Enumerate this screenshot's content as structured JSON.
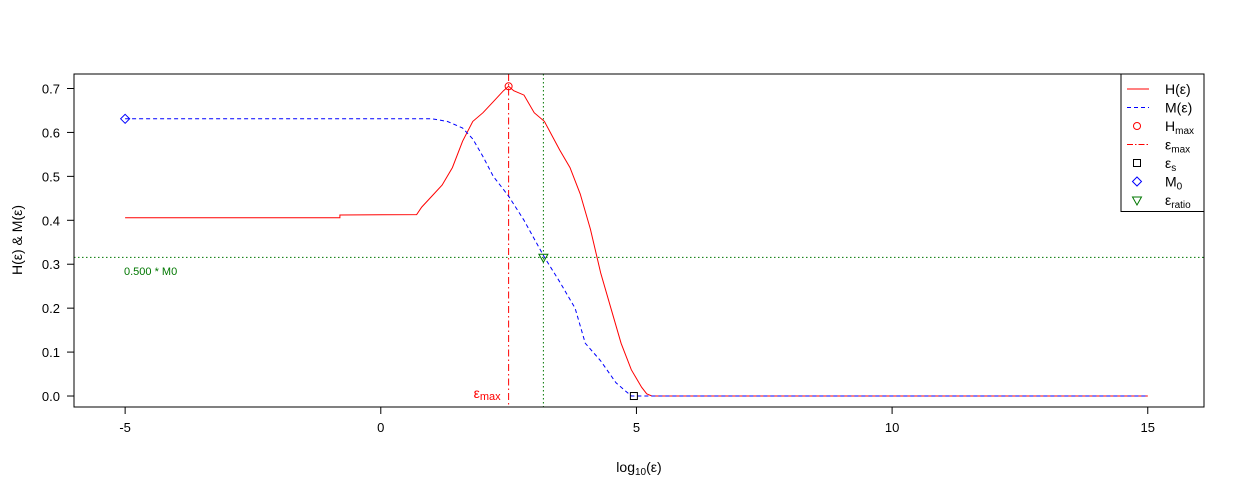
{
  "chart_data": {
    "type": "line",
    "xlabel_main": "log",
    "xlabel_sub": "10",
    "xlabel_tail": "(ε)",
    "ylabel": "H(ε)  & M(ε)",
    "xlim": [
      -6.0,
      16.1
    ],
    "ylim": [
      -0.025,
      0.733
    ],
    "x_ticks": [
      -5,
      0,
      5,
      10,
      15
    ],
    "y_ticks": [
      0.0,
      0.1,
      0.2,
      0.3,
      0.4,
      0.5,
      0.6,
      0.7
    ],
    "x_tick_labels": [
      "-5",
      "0",
      "5",
      "10",
      "15"
    ],
    "y_tick_labels": [
      "0.0",
      "0.1",
      "0.2",
      "0.3",
      "0.4",
      "0.5",
      "0.6",
      "0.7"
    ],
    "grid": false,
    "legend_position": "top-right",
    "colors": {
      "H": "#ff0000",
      "M": "#0000ff",
      "ratio": "#007700",
      "es": "#000000"
    },
    "series": [
      {
        "name": "H(ε)",
        "style": "solid",
        "x": [
          -5,
          -0.8,
          -0.8,
          0.7,
          0.8,
          1.0,
          1.2,
          1.4,
          1.6,
          1.8,
          2.0,
          2.2,
          2.4,
          2.5,
          2.6,
          2.8,
          3.0,
          3.2,
          3.5,
          3.7,
          3.9,
          4.1,
          4.3,
          4.5,
          4.7,
          4.9,
          5.0,
          5.1,
          5.2,
          5.3,
          15
        ],
        "y": [
          0.406,
          0.406,
          0.412,
          0.413,
          0.43,
          0.455,
          0.48,
          0.52,
          0.58,
          0.625,
          0.645,
          0.67,
          0.695,
          0.705,
          0.695,
          0.685,
          0.645,
          0.625,
          0.56,
          0.52,
          0.46,
          0.38,
          0.28,
          0.2,
          0.12,
          0.06,
          0.04,
          0.02,
          0.005,
          0.0,
          0.0
        ]
      },
      {
        "name": "M(ε)",
        "style": "dashed",
        "x": [
          -5,
          1.0,
          1.3,
          1.6,
          1.8,
          2.0,
          2.2,
          2.5,
          2.8,
          3.2,
          3.5,
          3.8,
          4.0,
          4.3,
          4.6,
          4.9,
          5.2,
          15
        ],
        "y": [
          0.631,
          0.631,
          0.625,
          0.61,
          0.585,
          0.545,
          0.5,
          0.455,
          0.4,
          0.316,
          0.26,
          0.2,
          0.12,
          0.08,
          0.03,
          0.0,
          0.0,
          0.0
        ]
      }
    ],
    "markers": {
      "Hmax": {
        "x": 2.5,
        "y": 0.705
      },
      "eps_max": {
        "x": 2.5
      },
      "eps_s": {
        "x": 4.95,
        "y": 0.0
      },
      "M0": {
        "x": -5,
        "y": 0.631
      },
      "eps_ratio": {
        "x": 3.18,
        "y": 0.316
      },
      "ratio_hline_y": 0.3155
    },
    "annotations": {
      "ratio_label": "0.500 * M0",
      "eps_max_main": "ε",
      "eps_max_sub": "max"
    },
    "legend": [
      {
        "symbol": "line-solid",
        "color": "#ff0000",
        "main": "H(ε)",
        "sub": ""
      },
      {
        "symbol": "line-dashed",
        "color": "#0000ff",
        "main": "M(ε)",
        "sub": ""
      },
      {
        "symbol": "circle",
        "color": "#ff0000",
        "main": "H",
        "sub": "max"
      },
      {
        "symbol": "line-dotdash",
        "color": "#ff0000",
        "main": "ε",
        "sub": "max"
      },
      {
        "symbol": "square",
        "color": "#000000",
        "main": "ε",
        "sub": "s"
      },
      {
        "symbol": "diamond",
        "color": "#0000ff",
        "main": "M",
        "sub": "0"
      },
      {
        "symbol": "triangle-down",
        "color": "#007700",
        "main": "ε",
        "sub": "ratio"
      }
    ]
  }
}
